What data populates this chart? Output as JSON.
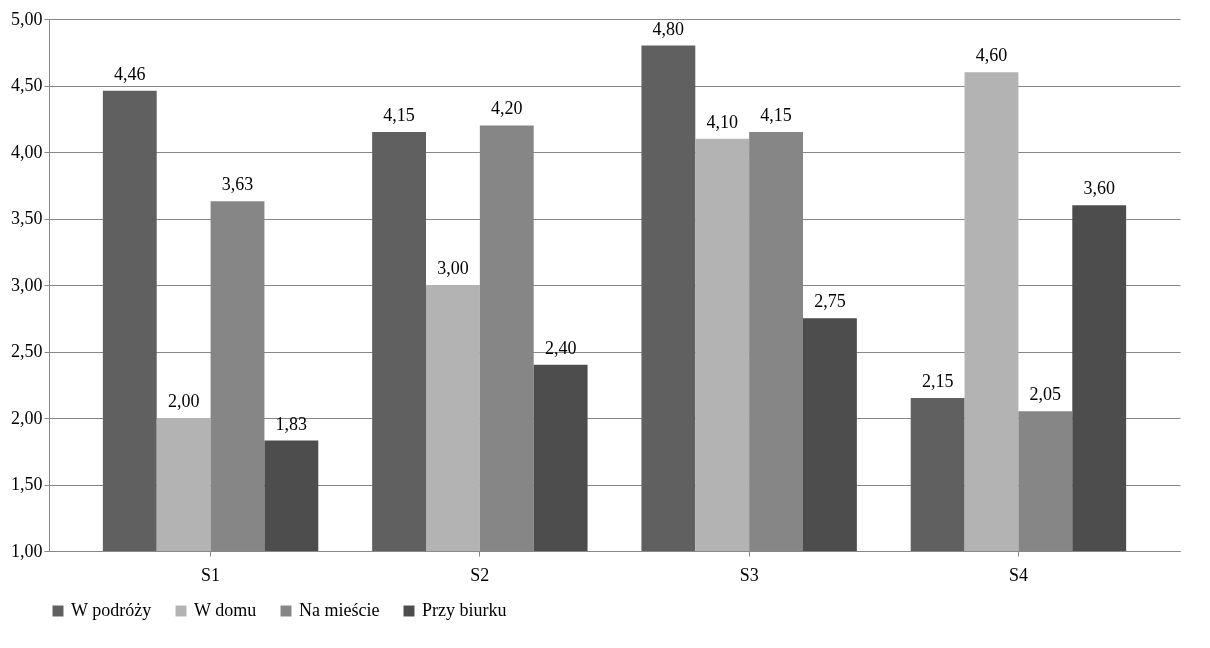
{
  "chart_data": {
    "type": "bar",
    "categories": [
      "S1",
      "S2",
      "S3",
      "S4"
    ],
    "series": [
      {
        "name": "W podróży",
        "color": "#606060",
        "values": [
          4.46,
          4.15,
          4.8,
          2.15
        ],
        "value_labels": [
          "4,46",
          "4,15",
          "4,80",
          "2,15"
        ]
      },
      {
        "name": "W domu",
        "color": "#b3b3b3",
        "values": [
          2.0,
          3.0,
          4.1,
          4.6
        ],
        "value_labels": [
          "2,00",
          "3,00",
          "4,10",
          "4,60"
        ]
      },
      {
        "name": "Na mieście",
        "color": "#868686",
        "values": [
          3.63,
          4.2,
          4.15,
          2.05
        ],
        "value_labels": [
          "3,63",
          "4,20",
          "4,15",
          "2,05"
        ]
      },
      {
        "name": "Przy biurku",
        "color": "#4d4d4d",
        "values": [
          1.83,
          2.4,
          2.75,
          3.6
        ],
        "value_labels": [
          "1,83",
          "2,40",
          "2,75",
          "3,60"
        ]
      }
    ],
    "ylim": [
      1.0,
      5.0
    ],
    "yticks": [
      {
        "value": 1.0,
        "label": "1,00"
      },
      {
        "value": 1.5,
        "label": "1,50"
      },
      {
        "value": 2.0,
        "label": "2,00"
      },
      {
        "value": 2.5,
        "label": "2,50"
      },
      {
        "value": 3.0,
        "label": "3,00"
      },
      {
        "value": 3.5,
        "label": "3,50"
      },
      {
        "value": 4.0,
        "label": "4,00"
      },
      {
        "value": 4.5,
        "label": "4,50"
      },
      {
        "value": 5.0,
        "label": "5,00"
      }
    ],
    "grid": "y",
    "legend": "bottom"
  }
}
